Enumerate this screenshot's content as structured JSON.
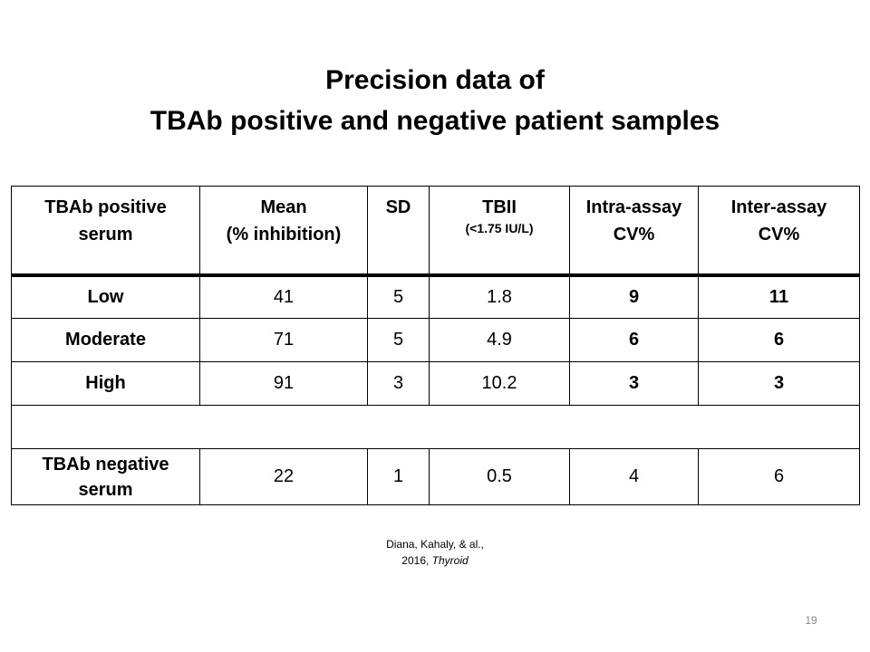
{
  "title": {
    "line1": "Precision data of",
    "line2": "TBAb positive and negative patient samples"
  },
  "table": {
    "headers": {
      "col1_line1": "TBAb positive",
      "col1_line2": "serum",
      "col2_line1": "Mean",
      "col2_line2": "(% inhibition)",
      "col3": "SD",
      "col4_line1": "TBII",
      "col4_line2": "(<1.75 IU/L)",
      "col5_line1": "Intra-assay",
      "col5_line2": "CV%",
      "col6_line1": "Inter-assay",
      "col6_line2": "CV%"
    },
    "rows": [
      {
        "label": "Low",
        "mean": "41",
        "sd": "5",
        "tbii": "1.8",
        "intra": "9",
        "inter": "11"
      },
      {
        "label": "Moderate",
        "mean": "71",
        "sd": "5",
        "tbii": "4.9",
        "intra": "6",
        "inter": "6"
      },
      {
        "label": "High",
        "mean": "91",
        "sd": "3",
        "tbii": "10.2",
        "intra": "3",
        "inter": "3"
      }
    ],
    "negative": {
      "label_line1": "TBAb negative",
      "label_line2": "serum",
      "mean": "22",
      "sd": "1",
      "tbii": "0.5",
      "intra": "4",
      "inter": "6"
    }
  },
  "citation": {
    "line1": "Diana, Kahaly, & al.,",
    "line2_prefix": "2016, ",
    "line2_journal": "Thyroid"
  },
  "page_number": "19"
}
